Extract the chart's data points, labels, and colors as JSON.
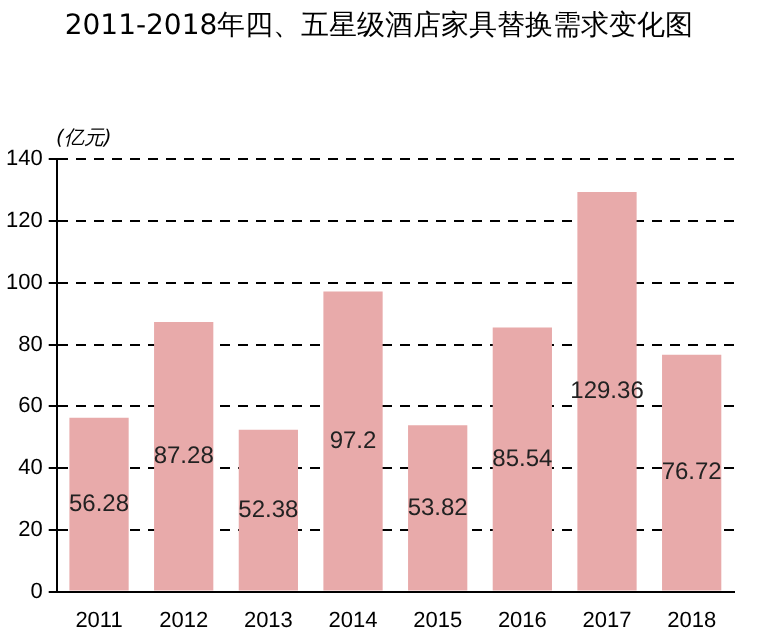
{
  "chart_data": {
    "type": "bar",
    "title": "2011-2018年四、五星级酒店家具替换需求变化图",
    "ylabel": "(亿元)",
    "categories": [
      "2011",
      "2012",
      "2013",
      "2014",
      "2015",
      "2016",
      "2017",
      "2018"
    ],
    "values": [
      56.28,
      87.28,
      52.38,
      97.2,
      53.82,
      85.54,
      129.36,
      76.72
    ],
    "color": "#e8aaaa",
    "ylim": [
      0,
      140
    ],
    "yticks": [
      0,
      20,
      40,
      60,
      80,
      100,
      120,
      140
    ],
    "grid": "y",
    "line_style": "dashed",
    "data_labels": true
  }
}
